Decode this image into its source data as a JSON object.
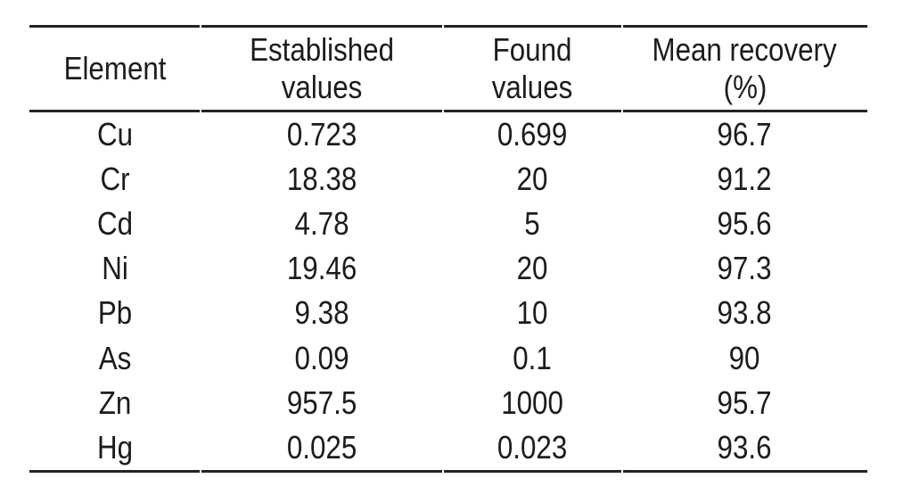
{
  "table": {
    "ink_color": "#1c1c1c",
    "background_color": "#ffffff",
    "columns": [
      {
        "line1": "Element",
        "line2": ""
      },
      {
        "line1": "Established",
        "line2": "values"
      },
      {
        "line1": "Found",
        "line2": "values"
      },
      {
        "line1": "Mean recovery",
        "line2": "(%)"
      }
    ],
    "rows": [
      {
        "element": "Cu",
        "established": "0.723",
        "found": "0.699",
        "recovery": "96.7"
      },
      {
        "element": "Cr",
        "established": "18.38",
        "found": "20",
        "recovery": "91.2"
      },
      {
        "element": "Cd",
        "established": "4.78",
        "found": "5",
        "recovery": "95.6"
      },
      {
        "element": "Ni",
        "established": "19.46",
        "found": "20",
        "recovery": "97.3"
      },
      {
        "element": "Pb",
        "established": "9.38",
        "found": "10",
        "recovery": "93.8"
      },
      {
        "element": "As",
        "established": "0.09",
        "found": "0.1",
        "recovery": "90"
      },
      {
        "element": "Zn",
        "established": "957.5",
        "found": "1000",
        "recovery": "95.7"
      },
      {
        "element": "Hg",
        "established": "0.025",
        "found": "0.023",
        "recovery": "93.6"
      }
    ]
  }
}
